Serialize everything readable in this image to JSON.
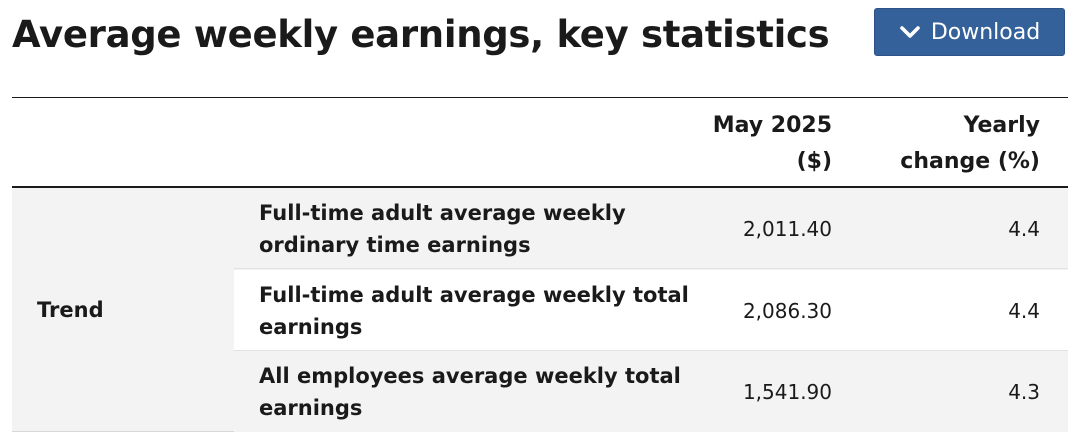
{
  "page": {
    "title": "Average weekly earnings, key statistics",
    "download_label": "Download"
  },
  "table": {
    "columns": {
      "value_line1": "May 2025",
      "value_line2": "($)",
      "change_line1": "Yearly",
      "change_line2": "change (%)"
    },
    "group_label": "Trend",
    "rows": [
      {
        "label": "Full-time adult average weekly ordinary time earnings",
        "value": "2,011.40",
        "change": "4.4"
      },
      {
        "label": "Full-time adult average weekly total earnings",
        "value": "2,086.30",
        "change": "4.4"
      },
      {
        "label": "All employees average weekly total earnings",
        "value": "1,541.90",
        "change": "4.3"
      }
    ]
  },
  "colors": {
    "button_bg": "#35619a",
    "row_shaded": "#f3f3f3",
    "text": "#1a1a1a"
  },
  "icons": {
    "download_icon": "chevron-down-icon"
  }
}
